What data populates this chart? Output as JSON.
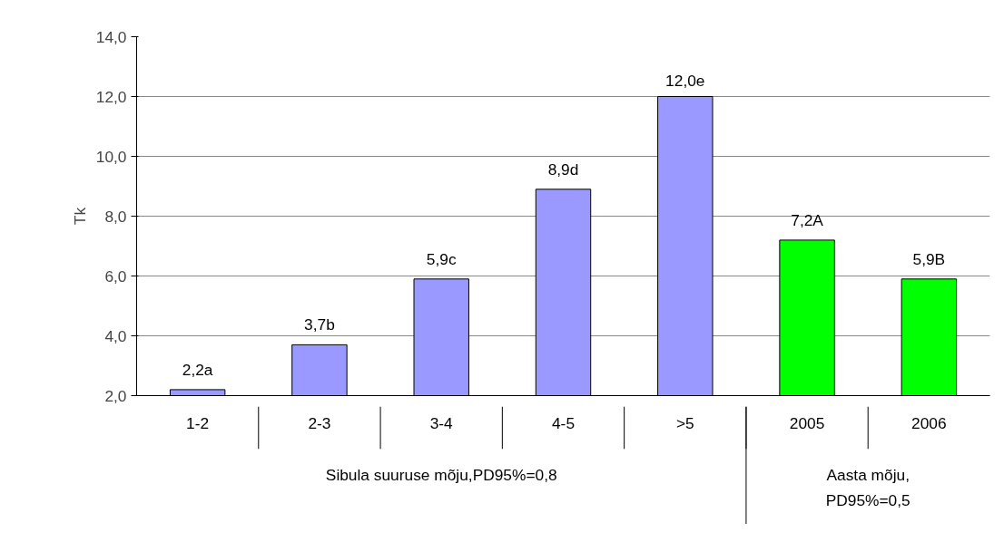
{
  "chart_data": {
    "type": "bar",
    "ylabel": "Tk",
    "categories": [
      "1-2",
      "2-3",
      "3-4",
      "4-5",
      ">5",
      "2005",
      "2006"
    ],
    "values": [
      2.2,
      3.7,
      5.9,
      8.9,
      12.0,
      7.2,
      5.9
    ],
    "colors": [
      "#9999ff",
      "#9999ff",
      "#9999ff",
      "#9999ff",
      "#9999ff",
      "#00ff00",
      "#00ff00"
    ],
    "value_labels": [
      "2,2a",
      "3,7b",
      "5,9c",
      "8,9d",
      "12,0e",
      "7,2A",
      "5,9B"
    ],
    "ylim": [
      2,
      14
    ],
    "yticks": [
      {
        "value": 2,
        "label": "2,0"
      },
      {
        "value": 4,
        "label": "4,0"
      },
      {
        "value": 6,
        "label": "6,0"
      },
      {
        "value": 8,
        "label": "8,0"
      },
      {
        "value": 10,
        "label": "10,0"
      },
      {
        "value": 12,
        "label": "12,0"
      },
      {
        "value": 14,
        "label": "14,0"
      }
    ],
    "grid": "y",
    "annotations": [
      "Sibula suuruse mõju,PD95%=0,8",
      "Aasta mõju,\nPD95%=0,5"
    ]
  }
}
